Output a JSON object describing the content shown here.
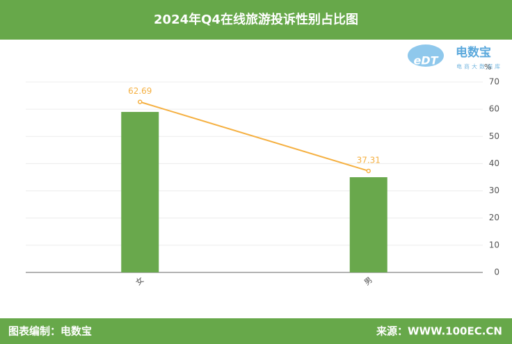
{
  "chart_data": {
    "type": "bar",
    "title": "2024年Q4在线旅游投诉性别占比图",
    "ylabel": "%",
    "categories": [
      "女",
      "男"
    ],
    "series": [
      {
        "type": "bar",
        "color": "#69a84c",
        "values": [
          59,
          35
        ]
      },
      {
        "type": "line",
        "color": "#f5b041",
        "values": [
          62.69,
          37.31
        ]
      }
    ],
    "ylim": [
      0,
      70
    ],
    "yticks": [
      0,
      10,
      20,
      30,
      40,
      50,
      60,
      70
    ],
    "grid": true,
    "logo": {
      "name": "电数宝",
      "tagline": "电商大数据库",
      "mark": "eDT"
    },
    "footer": {
      "left": "图表编制：电数宝",
      "right": "来源：WWW.100EC.CN"
    }
  }
}
